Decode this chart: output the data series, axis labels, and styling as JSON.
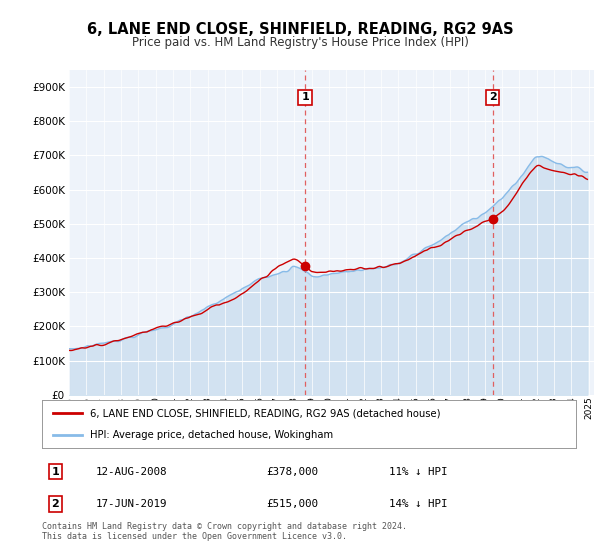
{
  "title": "6, LANE END CLOSE, SHINFIELD, READING, RG2 9AS",
  "subtitle": "Price paid vs. HM Land Registry's House Price Index (HPI)",
  "legend_line1": "6, LANE END CLOSE, SHINFIELD, READING, RG2 9AS (detached house)",
  "legend_line2": "HPI: Average price, detached house, Wokingham",
  "sale1_date": "12-AUG-2008",
  "sale1_price": "£378,000",
  "sale1_note": "11% ↓ HPI",
  "sale2_date": "17-JUN-2019",
  "sale2_price": "£515,000",
  "sale2_note": "14% ↓ HPI",
  "footer": "Contains HM Land Registry data © Crown copyright and database right 2024.\nThis data is licensed under the Open Government Licence v3.0.",
  "hpi_color": "#88bbe8",
  "hpi_fill_color": "#cde0f0",
  "price_color": "#cc0000",
  "dashed_color": "#e06060",
  "ylim": [
    0,
    950000
  ],
  "yticks": [
    0,
    100000,
    200000,
    300000,
    400000,
    500000,
    600000,
    700000,
    800000,
    900000
  ],
  "ytick_labels": [
    "£0",
    "£100K",
    "£200K",
    "£300K",
    "£400K",
    "£500K",
    "£600K",
    "£700K",
    "£800K",
    "£900K"
  ],
  "bg_color": "#eef3fa",
  "sale1_year_f": 2008.625,
  "sale1_price_v": 378000,
  "sale2_year_f": 2019.458,
  "sale2_price_v": 515000
}
